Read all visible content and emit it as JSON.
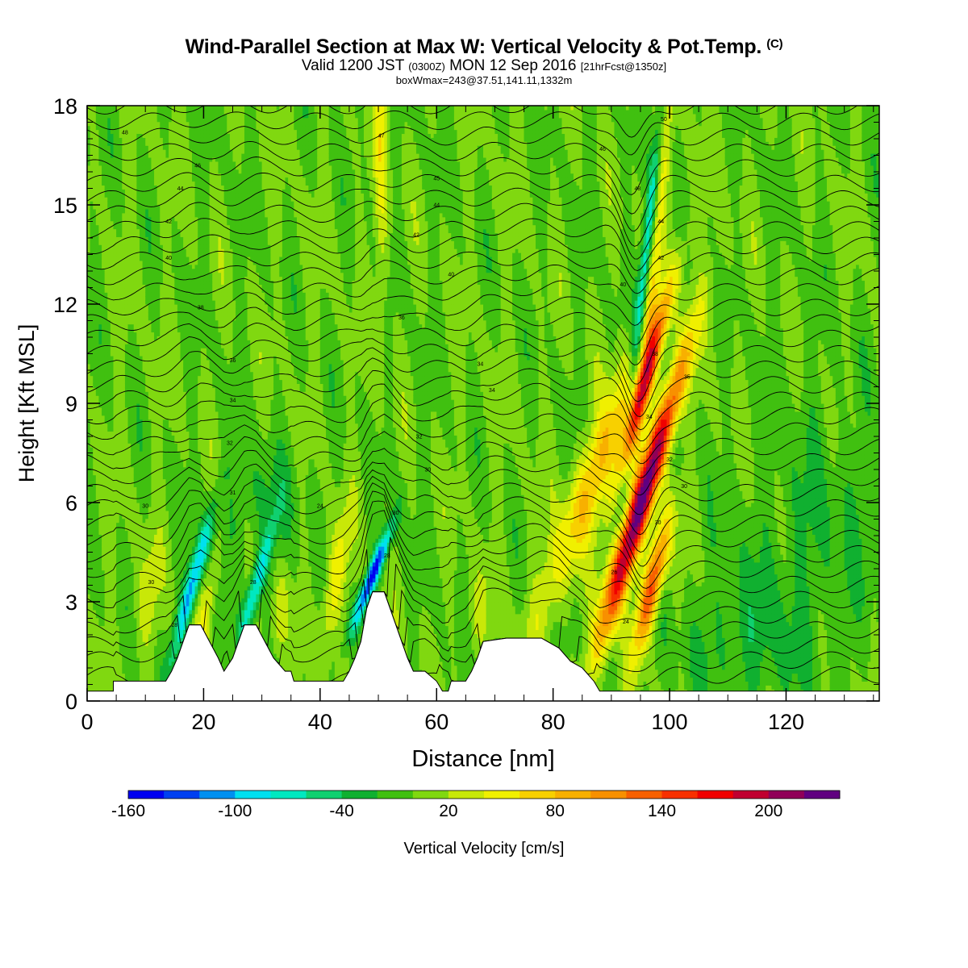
{
  "header": {
    "title": "Wind-Parallel Section at Max W: Vertical Velocity & Pot.Temp.",
    "copyright": "(C)",
    "valid_prefix": "Valid 1200 JST",
    "valid_zulu": "(0300Z)",
    "valid_date": "MON 12 Sep 2016",
    "forecast": "[21hrFcst@1350z]",
    "boxline": "boxWmax=243@37.51,141.11,1332m"
  },
  "chart_data": {
    "type": "heatmap",
    "xlabel": "Distance [nm]",
    "ylabel": "Height [Kft MSL]",
    "xlim": [
      0,
      136
    ],
    "ylim": [
      0,
      18
    ],
    "xticks": [
      0,
      20,
      40,
      60,
      80,
      100,
      120
    ],
    "yticks": [
      0,
      3,
      6,
      9,
      12,
      15,
      18
    ],
    "colorbar": {
      "label": "Vertical Velocity [cm/s]",
      "range": [
        -160,
        240
      ],
      "step": 20,
      "tick_labels": [
        -160,
        -100,
        -40,
        20,
        80,
        140,
        200
      ],
      "colors": [
        "#0000f0",
        "#0040f0",
        "#0090f0",
        "#00e0f0",
        "#00e8c0",
        "#10d070",
        "#10b030",
        "#40c010",
        "#80d810",
        "#c8e808",
        "#f0f000",
        "#f8d000",
        "#f8b000",
        "#f89000",
        "#f86000",
        "#f83000",
        "#f00000",
        "#c00030",
        "#900058",
        "#600080"
      ]
    },
    "background_w": 0,
    "terrain_kft": [
      [
        0,
        0.3
      ],
      [
        4.5,
        0.3
      ],
      [
        4.5,
        0.6
      ],
      [
        13.5,
        0.6
      ],
      [
        14.5,
        0.9
      ],
      [
        15.5,
        1.3
      ],
      [
        16.5,
        1.8
      ],
      [
        17.5,
        2.3
      ],
      [
        19.5,
        2.3
      ],
      [
        21,
        1.8
      ],
      [
        22.5,
        1.3
      ],
      [
        23.5,
        0.9
      ],
      [
        25,
        1.3
      ],
      [
        26,
        1.8
      ],
      [
        27,
        2.3
      ],
      [
        29,
        2.3
      ],
      [
        30.5,
        1.8
      ],
      [
        32,
        1.3
      ],
      [
        34,
        0.9
      ],
      [
        35,
        0.9
      ],
      [
        35.5,
        0.6
      ],
      [
        41,
        0.6
      ],
      [
        44,
        0.6
      ],
      [
        45,
        0.9
      ],
      [
        46,
        1.3
      ],
      [
        47,
        1.8
      ],
      [
        48,
        2.8
      ],
      [
        49,
        3.3
      ],
      [
        51,
        3.3
      ],
      [
        52,
        2.8
      ],
      [
        53,
        2.3
      ],
      [
        54,
        1.8
      ],
      [
        55,
        1.3
      ],
      [
        56,
        0.9
      ],
      [
        58,
        0.9
      ],
      [
        60,
        0.6
      ],
      [
        61,
        0.3
      ],
      [
        62,
        0.3
      ],
      [
        62.5,
        0.6
      ],
      [
        65,
        0.6
      ],
      [
        66,
        0.9
      ],
      [
        67,
        1.3
      ],
      [
        68,
        1.8
      ],
      [
        72,
        1.9
      ],
      [
        78,
        1.9
      ],
      [
        81,
        1.6
      ],
      [
        83,
        1.2
      ],
      [
        85,
        1.0
      ],
      [
        87,
        0.6
      ],
      [
        88,
        0.3
      ],
      [
        136,
        0.3
      ]
    ],
    "w_features": [
      {
        "x": 96,
        "z": 6.5,
        "sx": 1.4,
        "sz": 2.8,
        "tilt": 0.55,
        "w": 225
      },
      {
        "x": 95.5,
        "z": 9.5,
        "sx": 1.0,
        "sz": 2.0,
        "tilt": 0.5,
        "w": 150
      },
      {
        "x": 97,
        "z": 3.5,
        "sx": 1.2,
        "sz": 1.4,
        "tilt": 0.4,
        "w": 150
      },
      {
        "x": 87.5,
        "z": 7,
        "sx": 2.4,
        "sz": 3.2,
        "tilt": 0.7,
        "w": 80
      },
      {
        "x": 90.5,
        "z": 3.5,
        "sx": 1.6,
        "sz": 1.4,
        "tilt": 0.4,
        "w": 50
      },
      {
        "x": 98,
        "z": 14.5,
        "sx": 0.9,
        "sz": 4,
        "tilt": 0.15,
        "w": 50
      },
      {
        "x": 96,
        "z": 13.5,
        "sx": 0.7,
        "sz": 3.5,
        "tilt": 0.2,
        "w": -90
      },
      {
        "x": 50.5,
        "z": 16.5,
        "sx": 0.8,
        "sz": 3.5,
        "tilt": 0,
        "w": 45
      },
      {
        "x": 49,
        "z": 3.8,
        "sx": 0.8,
        "sz": 1.1,
        "tilt": 0.7,
        "w": -150
      },
      {
        "x": 18,
        "z": 3.5,
        "sx": 0.9,
        "sz": 1.6,
        "tilt": 0.5,
        "w": -110
      },
      {
        "x": 29,
        "z": 3.5,
        "sx": 0.9,
        "sz": 1.3,
        "tilt": 0.5,
        "w": -90
      },
      {
        "x": 42.5,
        "z": 3.6,
        "sx": 1.2,
        "sz": 1.5,
        "tilt": 0.3,
        "w": 55
      },
      {
        "x": 20.5,
        "z": 2.8,
        "sx": 0.9,
        "sz": 1.1,
        "tilt": 0.3,
        "w": 40
      },
      {
        "x": 33,
        "z": 2.6,
        "sx": 0.9,
        "sz": 0.9,
        "tilt": 0.2,
        "w": 30
      },
      {
        "x": 10.5,
        "z": 3.2,
        "sx": 1.4,
        "sz": 1.2,
        "tilt": 0.2,
        "w": 30
      },
      {
        "x": 67,
        "z": 2.6,
        "sx": 1.1,
        "sz": 0.9,
        "tilt": 0.2,
        "w": 25
      },
      {
        "x": 112,
        "z": 1.8,
        "sx": 7,
        "sz": 1.5,
        "tilt": 0,
        "w": -25
      },
      {
        "x": 125,
        "z": 5,
        "sx": 8,
        "sz": 3,
        "tilt": 0,
        "w": -20
      },
      {
        "x": 30,
        "z": 6,
        "sx": 5,
        "sz": 1.2,
        "tilt": 0.3,
        "w": -22
      }
    ],
    "theta_labels": [
      {
        "x": 6.5,
        "z": 17.2,
        "text": "48"
      },
      {
        "x": 50.5,
        "z": 17.1,
        "text": "47"
      },
      {
        "x": 88.5,
        "z": 16.7,
        "text": "46"
      },
      {
        "x": 99,
        "z": 17.6,
        "text": "50"
      },
      {
        "x": 19,
        "z": 16.2,
        "text": "46"
      },
      {
        "x": 60,
        "z": 15.8,
        "text": "45"
      },
      {
        "x": 16,
        "z": 15.5,
        "text": "44"
      },
      {
        "x": 60,
        "z": 15.0,
        "text": "44"
      },
      {
        "x": 94.5,
        "z": 15.5,
        "text": "48"
      },
      {
        "x": 14,
        "z": 14.5,
        "text": "42"
      },
      {
        "x": 56.5,
        "z": 14.1,
        "text": "42"
      },
      {
        "x": 98.5,
        "z": 14.5,
        "text": "44"
      },
      {
        "x": 14,
        "z": 13.4,
        "text": "40"
      },
      {
        "x": 62.5,
        "z": 12.9,
        "text": "40"
      },
      {
        "x": 98.5,
        "z": 13.4,
        "text": "42"
      },
      {
        "x": 92,
        "z": 12.6,
        "text": "40"
      },
      {
        "x": 19.5,
        "z": 11.9,
        "text": "38"
      },
      {
        "x": 54,
        "z": 11.6,
        "text": "36"
      },
      {
        "x": 97.5,
        "z": 10.5,
        "text": "38"
      },
      {
        "x": 25,
        "z": 10.3,
        "text": "36"
      },
      {
        "x": 67.5,
        "z": 10.2,
        "text": "34"
      },
      {
        "x": 103,
        "z": 9.8,
        "text": "35"
      },
      {
        "x": 69.5,
        "z": 9.4,
        "text": "34"
      },
      {
        "x": 25,
        "z": 9.1,
        "text": "34"
      },
      {
        "x": 96.5,
        "z": 8.6,
        "text": "34"
      },
      {
        "x": 57,
        "z": 8.0,
        "text": "32"
      },
      {
        "x": 24.5,
        "z": 7.8,
        "text": "32"
      },
      {
        "x": 100,
        "z": 7.3,
        "text": "32"
      },
      {
        "x": 58.5,
        "z": 7.0,
        "text": "30"
      },
      {
        "x": 102.5,
        "z": 6.5,
        "text": "30"
      },
      {
        "x": 10,
        "z": 5.9,
        "text": "30"
      },
      {
        "x": 25,
        "z": 6.3,
        "text": "31"
      },
      {
        "x": 40,
        "z": 5.9,
        "text": "24"
      },
      {
        "x": 53,
        "z": 5.7,
        "text": "30"
      },
      {
        "x": 98,
        "z": 5.4,
        "text": "30"
      },
      {
        "x": 51.5,
        "z": 4.4,
        "text": "28"
      },
      {
        "x": 90.5,
        "z": 3.9,
        "text": "26"
      },
      {
        "x": 11,
        "z": 3.6,
        "text": "30"
      },
      {
        "x": 28.5,
        "z": 3.6,
        "text": "28"
      },
      {
        "x": 92.5,
        "z": 2.4,
        "text": "24"
      },
      {
        "x": 15,
        "z": 2.3,
        "text": "28"
      }
    ]
  }
}
